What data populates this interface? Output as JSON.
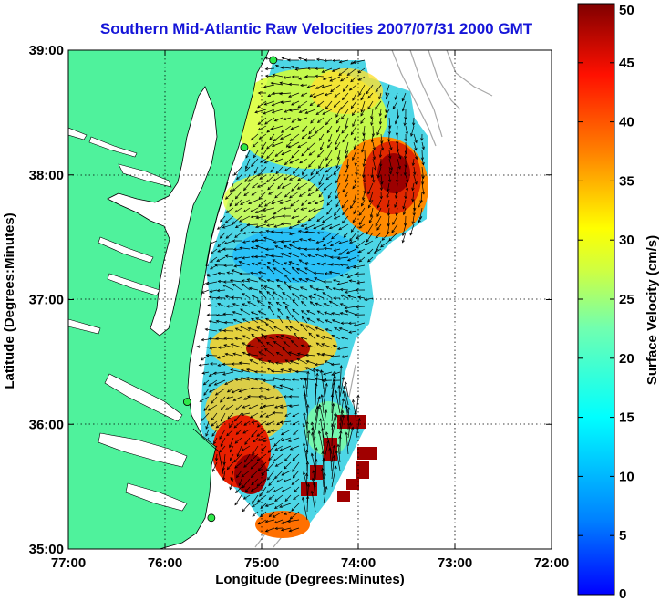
{
  "title": "Southern Mid-Atlantic Raw Velocities 2007/07/31 2000 GMT",
  "x_axis": {
    "label": "Longitude (Degrees:Minutes)",
    "ticks": [
      "77:00",
      "76:00",
      "75:00",
      "74:00",
      "73:00",
      "72:00"
    ],
    "range": [
      -77,
      -72
    ]
  },
  "y_axis": {
    "label": "Latitude (Degrees:Minutes)",
    "ticks": [
      "35:00",
      "36:00",
      "37:00",
      "38:00",
      "39:00"
    ],
    "range": [
      35,
      39
    ]
  },
  "colorbar": {
    "label": "Surface Velocity (cm/s)",
    "ticks": [
      "0",
      "5",
      "10",
      "15",
      "20",
      "25",
      "30",
      "35",
      "40",
      "45",
      "50"
    ],
    "range": [
      0,
      50
    ],
    "colormap": "jet"
  },
  "colors": {
    "land": "#4ff29c",
    "title": "#1515d8",
    "vectors": "#000000",
    "stations": "#2ee84a"
  },
  "stations": [
    {
      "lon": -74.88,
      "lat": 38.92
    },
    {
      "lon": -75.18,
      "lat": 38.22
    },
    {
      "lon": -75.77,
      "lat": 36.18
    },
    {
      "lon": -75.52,
      "lat": 35.25
    }
  ]
}
